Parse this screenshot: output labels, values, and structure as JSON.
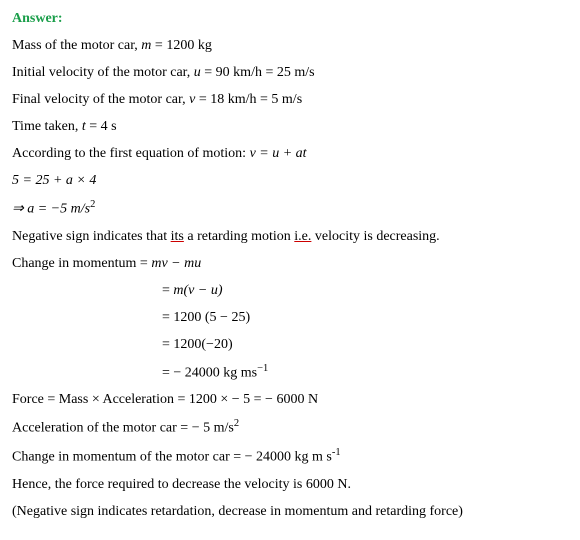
{
  "answer_label": "Answer:",
  "lines": {
    "l1a": "Mass of the motor car, ",
    "l1b": "m",
    "l1c": " = 1200 kg",
    "l2a": "Initial velocity of the motor car, ",
    "l2b": "u",
    "l2c": " = 90 km/h = 25 m/s",
    "l3a": "Final velocity of the motor car, ",
    "l3b": "v",
    "l3c": " = 18 km/h = 5 m/s",
    "l4a": "Time taken, ",
    "l4b": "t ",
    "l4c": "= 4 s",
    "l5a": "According to the first equation of motion:  ",
    "l5b": "v = u + at",
    "l6": "5 = 25 + a × 4",
    "l7a": "⇒ a = −5 ",
    "l7b": "m/s",
    "l7c": "2",
    "l8a": "Negative sign indicates that ",
    "l8b": "its",
    "l8c": " a retarding motion ",
    "l8d": "i.e.",
    "l8e": " velocity is decreasing.",
    "l9a": "Change in momentum = ",
    "l9b": "mv − mu",
    "l10a": "= ",
    "l10b": "m(v − u)",
    "l11": "= 1200 (5 − 25)",
    "l12": "= 1200(−20)",
    "l13a": "= − 24000 kg ms",
    "l13b": "−1",
    "l14": "Force = Mass × Acceleration = 1200 × − 5 = − 6000 N",
    "l15a": "Acceleration of the motor car = − 5 m/s",
    "l15b": "2",
    "l16a": "Change in momentum of the motor car = − 24000 kg m s",
    "l16b": "-1",
    "l17": "Hence, the force required to decrease the velocity is 6000 N.",
    "l18": "(Negative sign indicates retardation, decrease in momentum and retarding force)"
  },
  "colors": {
    "answer": "#1a9e4a",
    "underline": "#cc0000",
    "text": "#000000",
    "background": "#ffffff"
  },
  "fontsize_pt": 14
}
